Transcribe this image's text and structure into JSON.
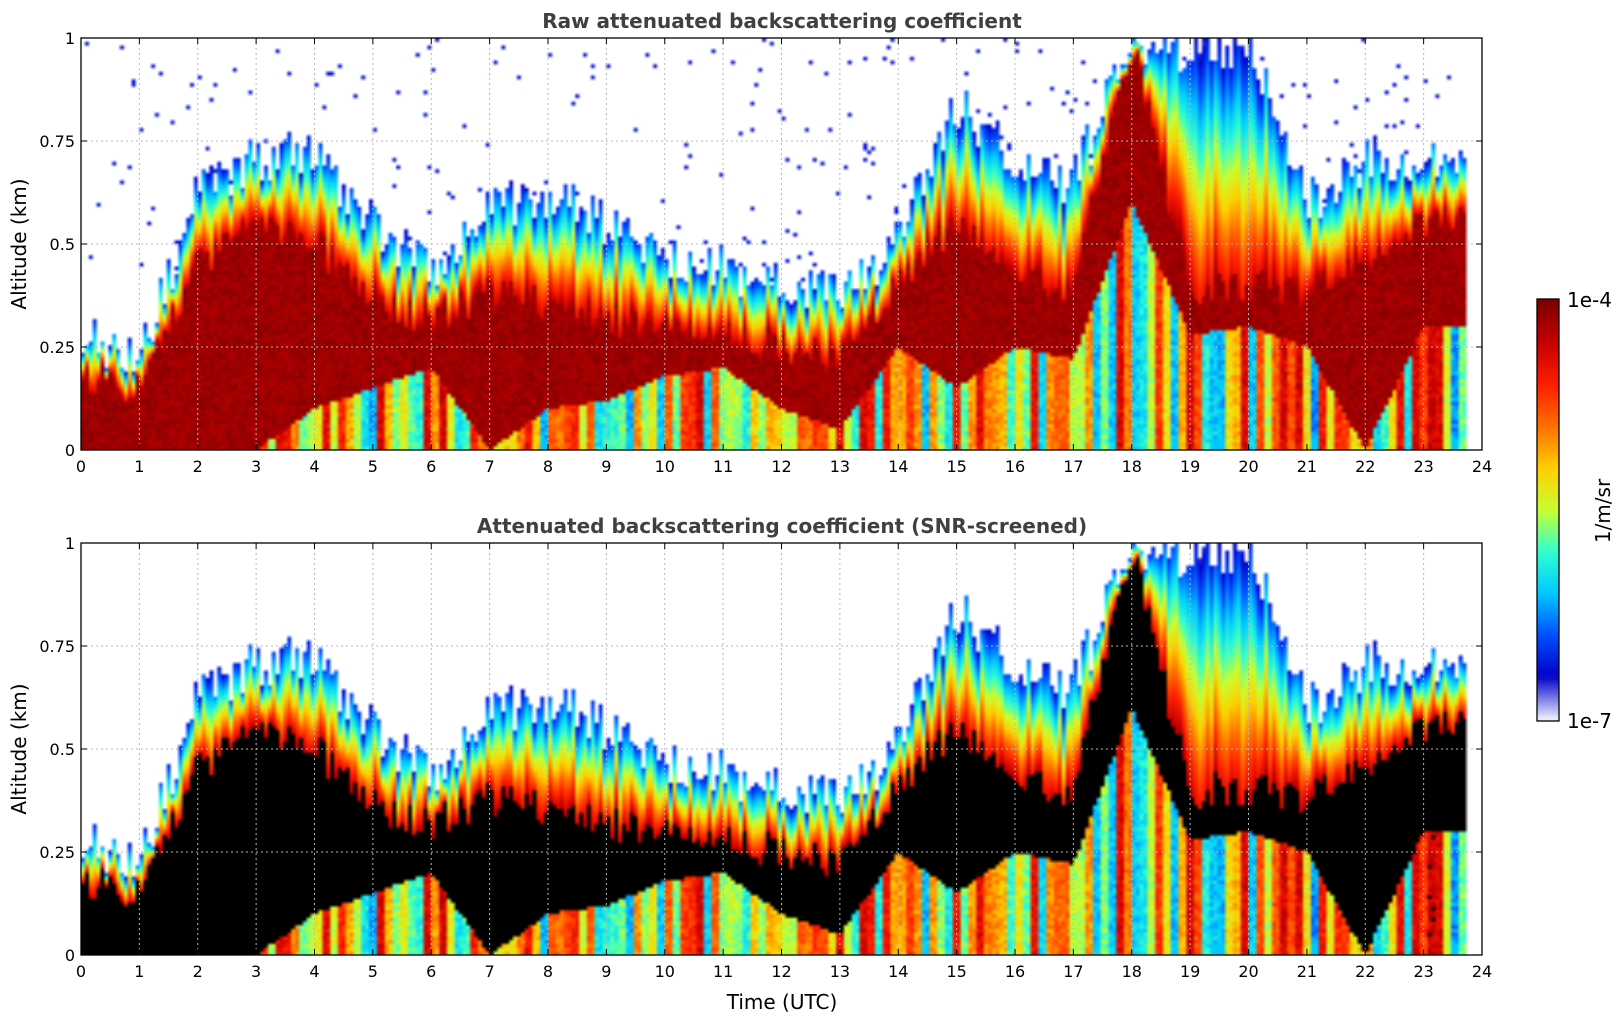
{
  "chart_data": [
    {
      "type": "heatmap",
      "title": "Raw attenuated backscattering coefficient",
      "xlabel": "",
      "ylabel": "Altitude (km)",
      "xlim": [
        0,
        24
      ],
      "ylim": [
        0,
        1
      ],
      "x_ticks": [
        "0",
        "1",
        "2",
        "3",
        "4",
        "5",
        "6",
        "7",
        "8",
        "9",
        "10",
        "11",
        "12",
        "13",
        "14",
        "15",
        "16",
        "17",
        "18",
        "19",
        "20",
        "21",
        "22",
        "23",
        "24"
      ],
      "y_ticks": [
        "0",
        "0.25",
        "0.5",
        "0.75",
        "1"
      ],
      "grid": true,
      "screened": false,
      "approx_layer": {
        "hours": [
          0,
          1,
          2,
          3,
          4,
          5,
          6,
          7,
          8,
          9,
          10,
          11,
          12,
          13,
          14,
          15,
          16,
          17,
          18,
          19,
          20,
          21,
          22,
          23
        ],
        "cloud_top_km": [
          0.28,
          0.22,
          0.62,
          0.7,
          0.72,
          0.55,
          0.44,
          0.6,
          0.62,
          0.55,
          0.47,
          0.45,
          0.4,
          0.38,
          0.5,
          0.85,
          0.7,
          0.65,
          1.0,
          0.95,
          1.0,
          0.6,
          0.7,
          0.72
        ],
        "dense_base_km": [
          0.0,
          0.0,
          0.0,
          0.0,
          0.1,
          0.15,
          0.2,
          0.0,
          0.1,
          0.12,
          0.18,
          0.2,
          0.1,
          0.05,
          0.25,
          0.15,
          0.25,
          0.22,
          0.6,
          0.28,
          0.3,
          0.25,
          0.0,
          0.3
        ],
        "dense_top_km": [
          0.18,
          0.15,
          0.45,
          0.55,
          0.5,
          0.35,
          0.32,
          0.38,
          0.35,
          0.32,
          0.3,
          0.28,
          0.25,
          0.22,
          0.4,
          0.55,
          0.42,
          0.4,
          1.0,
          0.38,
          0.4,
          0.38,
          0.45,
          0.55
        ]
      }
    },
    {
      "type": "heatmap",
      "title": "Attenuated backscattering coefficient (SNR-screened)",
      "xlabel": "Time (UTC)",
      "ylabel": "Altitude (km)",
      "xlim": [
        0,
        24
      ],
      "ylim": [
        0,
        1
      ],
      "x_ticks": [
        "0",
        "1",
        "2",
        "3",
        "4",
        "5",
        "6",
        "7",
        "8",
        "9",
        "10",
        "11",
        "12",
        "13",
        "14",
        "15",
        "16",
        "17",
        "18",
        "19",
        "20",
        "21",
        "22",
        "23",
        "24"
      ],
      "y_ticks": [
        "0",
        "0.25",
        "0.5",
        "0.75",
        "1"
      ],
      "grid": true,
      "screened": true
    }
  ],
  "colorbar": {
    "label": "1/m/sr",
    "max_label": "1e-4",
    "min_label": "1e-7",
    "scale": "log",
    "range": [
      1e-07,
      0.0001
    ],
    "colormap": [
      "#e8e8ff",
      "#0000c8",
      "#0050ff",
      "#00c8ff",
      "#30ffd0",
      "#c8ff30",
      "#ffd000",
      "#ff7000",
      "#ff2000",
      "#c80000",
      "#800000"
    ],
    "saturated_color_screened": "#000000"
  }
}
